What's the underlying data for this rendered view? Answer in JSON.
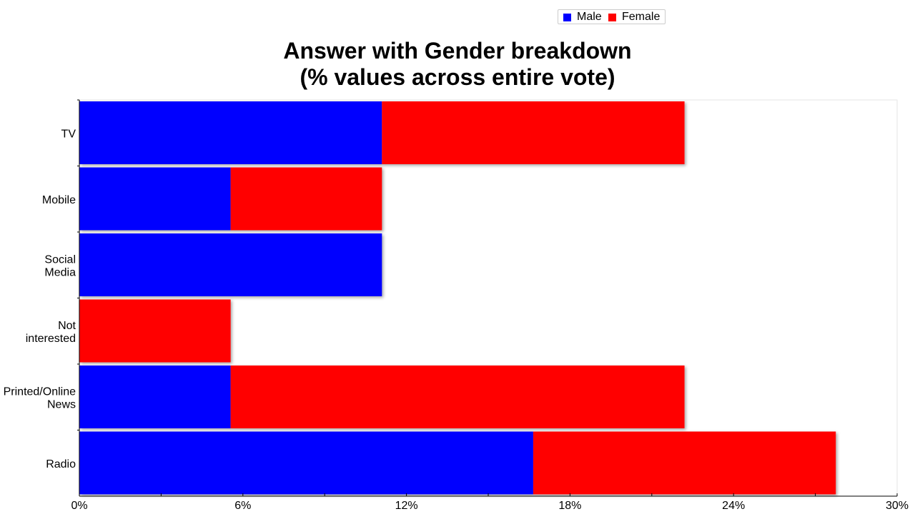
{
  "chart_data": {
    "type": "bar",
    "orientation": "horizontal",
    "stacked": true,
    "title": [
      "Answer with Gender breakdown",
      "(% values across entire vote)"
    ],
    "categories": [
      "TV",
      "Mobile",
      "Social Media",
      "Not interested",
      "Printed/Online News",
      "Radio"
    ],
    "category_lines": [
      [
        "TV"
      ],
      [
        "Mobile"
      ],
      [
        "Social",
        "Media"
      ],
      [
        "Not",
        "interested"
      ],
      [
        "Printed/Online",
        "News"
      ],
      [
        "Radio"
      ]
    ],
    "series": [
      {
        "name": "Male",
        "color": "#0000ff",
        "values": [
          11.1,
          5.55,
          11.1,
          0,
          5.55,
          16.65
        ]
      },
      {
        "name": "Female",
        "color": "#ff0000",
        "values": [
          11.1,
          5.55,
          0,
          5.55,
          16.65,
          11.1
        ]
      }
    ],
    "xlim": [
      0,
      30
    ],
    "xticks": [
      0,
      6,
      12,
      18,
      24,
      30
    ],
    "xtick_labels": [
      "0%",
      "6%",
      "12%",
      "18%",
      "24%",
      "30%"
    ],
    "legend_position": "top-right",
    "grid": false
  }
}
